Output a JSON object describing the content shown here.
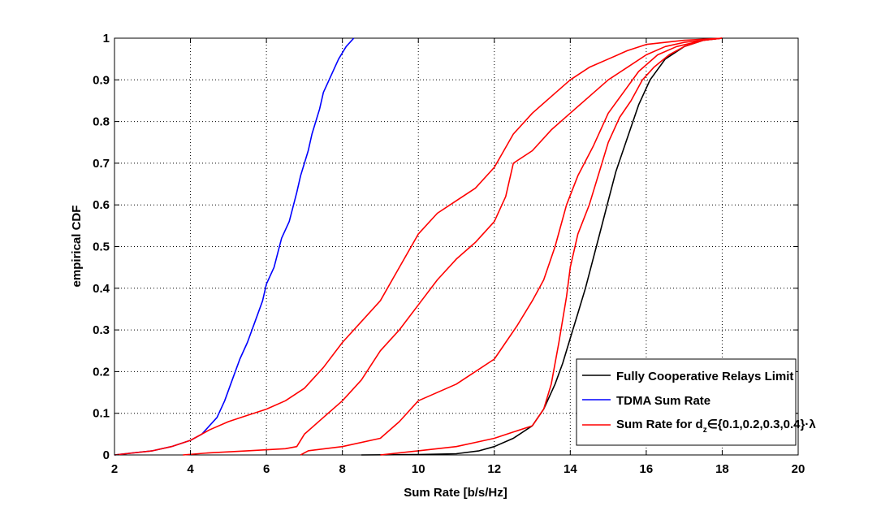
{
  "chart_data": {
    "type": "line",
    "title": "",
    "xlabel": "Sum Rate [b/s/Hz]",
    "ylabel": "empirical CDF",
    "xlim": [
      2,
      20
    ],
    "ylim": [
      0,
      1
    ],
    "xticks": [
      2,
      4,
      6,
      8,
      10,
      12,
      14,
      16,
      18,
      20
    ],
    "yticks": [
      0,
      0.1,
      0.2,
      0.3,
      0.4,
      0.5,
      0.6,
      0.7,
      0.8,
      0.9,
      1
    ],
    "grid": true,
    "legend_position": "bottom-right",
    "legend": [
      {
        "label": "Fully Cooperative Relays Limit",
        "color": "#000000"
      },
      {
        "label": "TDMA Sum Rate",
        "color": "#0000ff"
      },
      {
        "label_main": "Sum Rate for d",
        "label_sub": "z",
        "label_rest": "∈{0.1,0.2,0.3,0.4}·λ",
        "color": "#ff0000"
      }
    ],
    "series": [
      {
        "name": "Fully Cooperative Relays Limit",
        "color": "#000000",
        "points": [
          [
            8.5,
            0
          ],
          [
            10,
            0.001
          ],
          [
            11,
            0.003
          ],
          [
            11.6,
            0.01
          ],
          [
            12.0,
            0.02
          ],
          [
            12.5,
            0.04
          ],
          [
            13.0,
            0.07
          ],
          [
            13.3,
            0.11
          ],
          [
            13.6,
            0.17
          ],
          [
            13.8,
            0.22
          ],
          [
            14.0,
            0.28
          ],
          [
            14.2,
            0.34
          ],
          [
            14.4,
            0.4
          ],
          [
            14.6,
            0.47
          ],
          [
            14.8,
            0.54
          ],
          [
            15.0,
            0.61
          ],
          [
            15.2,
            0.68
          ],
          [
            15.5,
            0.76
          ],
          [
            15.8,
            0.84
          ],
          [
            16.1,
            0.9
          ],
          [
            16.5,
            0.95
          ],
          [
            17.0,
            0.98
          ],
          [
            17.5,
            0.995
          ],
          [
            18.0,
            1.0
          ]
        ]
      },
      {
        "name": "TDMA Sum Rate",
        "color": "#0000ff",
        "points": [
          [
            2.0,
            0
          ],
          [
            2.5,
            0.005
          ],
          [
            3.0,
            0.01
          ],
          [
            3.5,
            0.02
          ],
          [
            4.0,
            0.035
          ],
          [
            4.3,
            0.05
          ],
          [
            4.5,
            0.07
          ],
          [
            4.7,
            0.09
          ],
          [
            4.9,
            0.13
          ],
          [
            5.1,
            0.18
          ],
          [
            5.3,
            0.23
          ],
          [
            5.5,
            0.27
          ],
          [
            5.7,
            0.32
          ],
          [
            5.9,
            0.37
          ],
          [
            6.0,
            0.41
          ],
          [
            6.2,
            0.45
          ],
          [
            6.4,
            0.52
          ],
          [
            6.6,
            0.56
          ],
          [
            6.8,
            0.63
          ],
          [
            6.9,
            0.67
          ],
          [
            7.1,
            0.73
          ],
          [
            7.2,
            0.77
          ],
          [
            7.4,
            0.83
          ],
          [
            7.5,
            0.87
          ],
          [
            7.6,
            0.89
          ],
          [
            7.8,
            0.93
          ],
          [
            7.9,
            0.95
          ],
          [
            8.1,
            0.98
          ],
          [
            8.3,
            1.0
          ]
        ]
      },
      {
        "name": "",
        "color": "#ff0000",
        "points": [
          [
            2.0,
            0
          ],
          [
            3.0,
            0.01
          ],
          [
            3.5,
            0.02
          ],
          [
            4.0,
            0.035
          ],
          [
            4.5,
            0.06
          ],
          [
            5.0,
            0.08
          ],
          [
            5.5,
            0.095
          ],
          [
            6.0,
            0.11
          ],
          [
            6.5,
            0.13
          ],
          [
            7.0,
            0.16
          ],
          [
            7.5,
            0.21
          ],
          [
            8.0,
            0.27
          ],
          [
            8.5,
            0.32
          ],
          [
            9.0,
            0.37
          ],
          [
            9.5,
            0.45
          ],
          [
            10.0,
            0.53
          ],
          [
            10.5,
            0.58
          ],
          [
            11.0,
            0.61
          ],
          [
            11.5,
            0.64
          ],
          [
            12.0,
            0.69
          ],
          [
            12.5,
            0.77
          ],
          [
            13.0,
            0.82
          ],
          [
            13.5,
            0.86
          ],
          [
            14.0,
            0.9
          ],
          [
            14.5,
            0.93
          ],
          [
            15.0,
            0.95
          ],
          [
            15.5,
            0.97
          ],
          [
            16.0,
            0.985
          ],
          [
            17.0,
            0.995
          ],
          [
            18.0,
            1.0
          ]
        ]
      },
      {
        "name": "",
        "color": "#ff0000",
        "points": [
          [
            3.8,
            0
          ],
          [
            4.5,
            0.005
          ],
          [
            5.5,
            0.01
          ],
          [
            6.5,
            0.015
          ],
          [
            6.8,
            0.02
          ],
          [
            7.0,
            0.05
          ],
          [
            7.5,
            0.09
          ],
          [
            8.0,
            0.13
          ],
          [
            8.5,
            0.18
          ],
          [
            9.0,
            0.25
          ],
          [
            9.5,
            0.3
          ],
          [
            10.0,
            0.36
          ],
          [
            10.5,
            0.42
          ],
          [
            11.0,
            0.47
          ],
          [
            11.5,
            0.51
          ],
          [
            12.0,
            0.56
          ],
          [
            12.3,
            0.62
          ],
          [
            12.5,
            0.7
          ],
          [
            13.0,
            0.73
          ],
          [
            13.5,
            0.78
          ],
          [
            14.0,
            0.82
          ],
          [
            14.5,
            0.86
          ],
          [
            15.0,
            0.9
          ],
          [
            15.5,
            0.93
          ],
          [
            16.0,
            0.96
          ],
          [
            16.5,
            0.98
          ],
          [
            17.0,
            0.99
          ],
          [
            18.0,
            1.0
          ]
        ]
      },
      {
        "name": "",
        "color": "#ff0000",
        "points": [
          [
            6.9,
            0
          ],
          [
            7.1,
            0.01
          ],
          [
            8.0,
            0.02
          ],
          [
            9.0,
            0.04
          ],
          [
            9.5,
            0.08
          ],
          [
            10.0,
            0.13
          ],
          [
            11.0,
            0.17
          ],
          [
            11.5,
            0.2
          ],
          [
            12.0,
            0.23
          ],
          [
            12.3,
            0.27
          ],
          [
            12.6,
            0.31
          ],
          [
            13.0,
            0.37
          ],
          [
            13.3,
            0.42
          ],
          [
            13.6,
            0.5
          ],
          [
            13.9,
            0.6
          ],
          [
            14.2,
            0.67
          ],
          [
            14.6,
            0.74
          ],
          [
            15.0,
            0.82
          ],
          [
            15.4,
            0.87
          ],
          [
            15.8,
            0.92
          ],
          [
            16.3,
            0.96
          ],
          [
            16.8,
            0.98
          ],
          [
            17.5,
            0.995
          ],
          [
            18.0,
            1.0
          ]
        ]
      },
      {
        "name": "",
        "color": "#ff0000",
        "points": [
          [
            9.0,
            0
          ],
          [
            10.0,
            0.01
          ],
          [
            11.0,
            0.02
          ],
          [
            11.5,
            0.03
          ],
          [
            12.0,
            0.04
          ],
          [
            12.5,
            0.055
          ],
          [
            13.0,
            0.07
          ],
          [
            13.3,
            0.11
          ],
          [
            13.5,
            0.17
          ],
          [
            13.7,
            0.27
          ],
          [
            13.9,
            0.38
          ],
          [
            14.0,
            0.45
          ],
          [
            14.2,
            0.53
          ],
          [
            14.5,
            0.6
          ],
          [
            14.8,
            0.69
          ],
          [
            15.0,
            0.75
          ],
          [
            15.3,
            0.81
          ],
          [
            15.6,
            0.85
          ],
          [
            15.9,
            0.9
          ],
          [
            16.2,
            0.93
          ],
          [
            16.6,
            0.96
          ],
          [
            17.0,
            0.98
          ],
          [
            17.5,
            0.995
          ],
          [
            18.0,
            1.0
          ]
        ]
      }
    ]
  }
}
